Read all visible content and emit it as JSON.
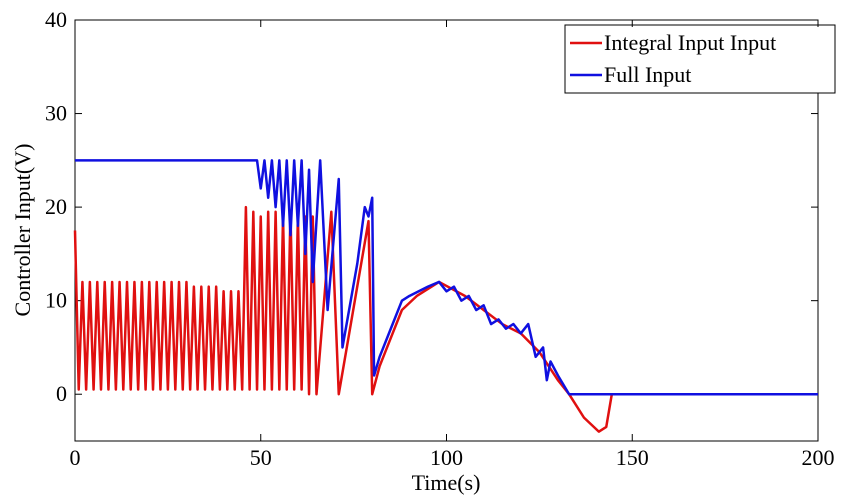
{
  "chart_data": {
    "type": "line",
    "xlabel": "Time(s)",
    "ylabel": "Controller Input(V)",
    "xlim": [
      0,
      200
    ],
    "xticks": [
      0,
      50,
      100,
      150,
      200
    ],
    "ylim": [
      -5,
      40
    ],
    "yticks": [
      0,
      10,
      20,
      30,
      40
    ],
    "grid": false,
    "legend": "upper right",
    "series": [
      {
        "name": "Integral Input Input",
        "color": "#e01010",
        "x": [
          0,
          1,
          2,
          3,
          4,
          5,
          6,
          7,
          8,
          9,
          10,
          11,
          12,
          13,
          14,
          15,
          16,
          17,
          18,
          19,
          20,
          21,
          22,
          23,
          24,
          25,
          26,
          27,
          28,
          29,
          30,
          31,
          32,
          33,
          34,
          35,
          36,
          37,
          38,
          39,
          40,
          41,
          42,
          43,
          44,
          45,
          46,
          47,
          48,
          49,
          50,
          51,
          52,
          53,
          54,
          55,
          56,
          57,
          58,
          59,
          60,
          61,
          62,
          63,
          64,
          65,
          69,
          71,
          79,
          80,
          82,
          85,
          88,
          92,
          98,
          105,
          110,
          115,
          120,
          125,
          130,
          133,
          137,
          141,
          143,
          144.5
        ],
        "values": [
          17.5,
          0.5,
          12,
          0.5,
          12,
          0.5,
          12,
          0.5,
          12,
          0.5,
          12,
          0.5,
          12,
          0.5,
          12,
          0.5,
          12,
          0.5,
          12,
          0.5,
          12,
          0.5,
          12,
          0.5,
          12,
          0.5,
          12,
          0.5,
          12,
          0.5,
          12,
          0.5,
          11.5,
          0.5,
          11.5,
          0.5,
          11.5,
          0.5,
          11.5,
          0.5,
          11,
          0.5,
          11,
          0.5,
          11,
          0.5,
          20,
          0.5,
          19.5,
          0.5,
          19,
          0.5,
          19.5,
          0.5,
          19.5,
          0.5,
          19,
          0.5,
          19.5,
          0.5,
          19,
          0.5,
          19,
          0,
          19,
          0,
          19.5,
          0,
          18.5,
          0,
          3,
          6,
          9,
          10.5,
          12,
          10.5,
          9,
          7.5,
          6.5,
          4.5,
          1.5,
          0,
          -2.5,
          -4,
          -3.5,
          0
        ]
      },
      {
        "name": "Full Input",
        "color": "#1010e0",
        "x": [
          0,
          49,
          50,
          51,
          52,
          53,
          54,
          55,
          56,
          57,
          58,
          59,
          60,
          61,
          62,
          63,
          64,
          66,
          68,
          71,
          72,
          76,
          78,
          79,
          80,
          80.5,
          82,
          85,
          88,
          90,
          95,
          98,
          100,
          102,
          104,
          106,
          108,
          110,
          112,
          114,
          116,
          118,
          120,
          122,
          124,
          126,
          127,
          128,
          130,
          133,
          200
        ],
        "values": [
          25,
          25,
          22,
          25,
          21,
          25,
          20,
          25,
          18,
          25,
          17,
          25,
          18,
          25,
          15,
          24,
          12,
          25,
          9,
          23,
          5,
          14,
          20,
          19,
          21,
          2,
          4,
          7,
          10,
          10.5,
          11.5,
          12,
          11,
          11.5,
          10,
          10.5,
          9,
          9.5,
          7.5,
          8,
          7,
          7.5,
          6.5,
          7.5,
          4,
          5,
          1.5,
          3.5,
          2,
          0,
          0
        ]
      }
    ]
  }
}
